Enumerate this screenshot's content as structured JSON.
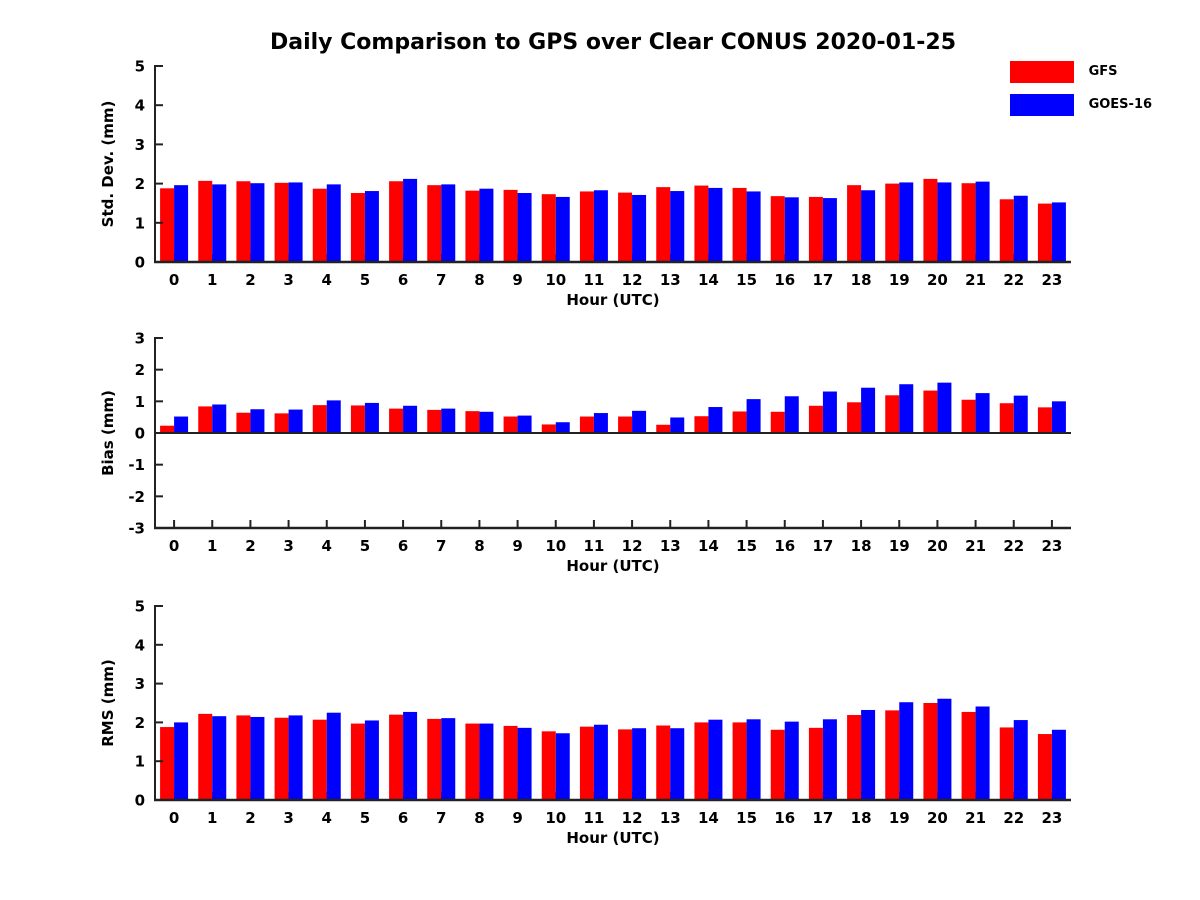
{
  "title": "Daily Comparison to GPS over Clear CONUS 2020-01-25",
  "legend": {
    "items": [
      {
        "label": "GFS",
        "color": "#ff0000"
      },
      {
        "label": "GOES-16",
        "color": "#0000ff"
      }
    ]
  },
  "axis_color": "#222222",
  "chart_data": [
    {
      "type": "bar",
      "panel": "std-dev",
      "ylabel": "Std. Dev. (mm)",
      "xlabel": "Hour (UTC)",
      "ylim": [
        0,
        5
      ],
      "yticks": [
        0,
        1,
        2,
        3,
        4,
        5
      ],
      "grid": false,
      "legend_position": "top-right",
      "categories": [
        "0",
        "1",
        "2",
        "3",
        "4",
        "5",
        "6",
        "7",
        "8",
        "9",
        "10",
        "11",
        "12",
        "13",
        "14",
        "15",
        "16",
        "17",
        "18",
        "19",
        "20",
        "21",
        "22",
        "23"
      ],
      "series": [
        {
          "name": "GFS",
          "color": "#ff0000",
          "values": [
            1.88,
            2.07,
            2.06,
            2.02,
            1.87,
            1.76,
            2.06,
            1.96,
            1.82,
            1.84,
            1.73,
            1.8,
            1.77,
            1.91,
            1.95,
            1.89,
            1.68,
            1.66,
            1.96,
            2.0,
            2.12,
            2.01,
            1.6,
            1.49
          ]
        },
        {
          "name": "GOES-16",
          "color": "#0000ff",
          "values": [
            1.96,
            1.98,
            2.01,
            2.03,
            1.98,
            1.81,
            2.12,
            1.98,
            1.87,
            1.76,
            1.66,
            1.83,
            1.71,
            1.81,
            1.89,
            1.8,
            1.65,
            1.63,
            1.83,
            2.03,
            2.03,
            2.05,
            1.69,
            1.52
          ]
        }
      ]
    },
    {
      "type": "bar",
      "panel": "bias",
      "ylabel": "Bias (mm)",
      "xlabel": "Hour (UTC)",
      "ylim": [
        -3,
        3
      ],
      "yticks": [
        -3,
        -2,
        -1,
        0,
        1,
        2,
        3
      ],
      "grid": false,
      "categories": [
        "0",
        "1",
        "2",
        "3",
        "4",
        "5",
        "6",
        "7",
        "8",
        "9",
        "10",
        "11",
        "12",
        "13",
        "14",
        "15",
        "16",
        "17",
        "18",
        "19",
        "20",
        "21",
        "22",
        "23"
      ],
      "series": [
        {
          "name": "GFS",
          "color": "#ff0000",
          "values": [
            0.23,
            0.84,
            0.64,
            0.62,
            0.88,
            0.87,
            0.77,
            0.73,
            0.69,
            0.52,
            0.27,
            0.52,
            0.52,
            0.26,
            0.53,
            0.68,
            0.67,
            0.86,
            0.97,
            1.19,
            1.34,
            1.05,
            0.94,
            0.81
          ]
        },
        {
          "name": "GOES-16",
          "color": "#0000ff",
          "values": [
            0.52,
            0.9,
            0.75,
            0.74,
            1.03,
            0.95,
            0.86,
            0.77,
            0.67,
            0.55,
            0.34,
            0.63,
            0.7,
            0.49,
            0.82,
            1.07,
            1.16,
            1.31,
            1.43,
            1.54,
            1.59,
            1.26,
            1.18,
            1.0
          ]
        }
      ]
    },
    {
      "type": "bar",
      "panel": "rms",
      "ylabel": "RMS (mm)",
      "xlabel": "Hour (UTC)",
      "ylim": [
        0,
        5
      ],
      "yticks": [
        0,
        1,
        2,
        3,
        4,
        5
      ],
      "grid": false,
      "categories": [
        "0",
        "1",
        "2",
        "3",
        "4",
        "5",
        "6",
        "7",
        "8",
        "9",
        "10",
        "11",
        "12",
        "13",
        "14",
        "15",
        "16",
        "17",
        "18",
        "19",
        "20",
        "21",
        "22",
        "23"
      ],
      "series": [
        {
          "name": "GFS",
          "color": "#ff0000",
          "values": [
            1.88,
            2.22,
            2.18,
            2.12,
            2.07,
            1.97,
            2.2,
            2.09,
            1.97,
            1.91,
            1.77,
            1.89,
            1.82,
            1.92,
            2.0,
            2.0,
            1.81,
            1.86,
            2.19,
            2.31,
            2.5,
            2.27,
            1.87,
            1.7
          ]
        },
        {
          "name": "GOES-16",
          "color": "#0000ff",
          "values": [
            2.0,
            2.16,
            2.14,
            2.18,
            2.25,
            2.05,
            2.27,
            2.11,
            1.97,
            1.86,
            1.72,
            1.94,
            1.85,
            1.85,
            2.07,
            2.08,
            2.02,
            2.08,
            2.32,
            2.52,
            2.61,
            2.41,
            2.06,
            1.81
          ]
        }
      ]
    }
  ]
}
